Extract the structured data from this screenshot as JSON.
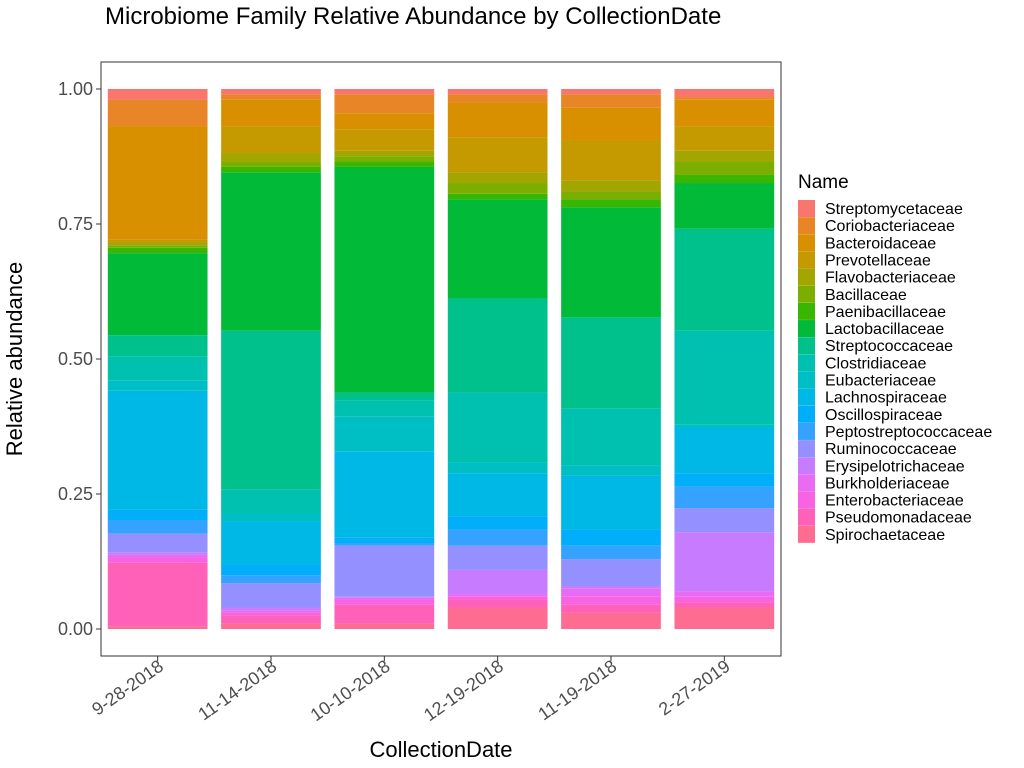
{
  "chart_data": {
    "type": "bar",
    "stacked": true,
    "title": "Microbiome Family Relative Abundance by CollectionDate",
    "xlabel": "CollectionDate",
    "ylabel": "Relative abundance",
    "ylim": [
      0,
      1
    ],
    "yticks": [
      "0.00",
      "0.25",
      "0.50",
      "0.75",
      "1.00"
    ],
    "grid": false,
    "legend": {
      "title": "Name",
      "placement": "right"
    },
    "categories": [
      "9-28-2018",
      "11-14-2018",
      "10-10-2018",
      "12-19-2018",
      "11-19-2018",
      "2-27-2019"
    ],
    "series": [
      {
        "name": "Spirochaetaceae",
        "color": "#FF6C91",
        "values": [
          0.005,
          0.01,
          0.01,
          0.04,
          0.03,
          0.04
        ]
      },
      {
        "name": "Pseudomonadaceae",
        "color": "#FF61B9",
        "values": [
          0.12,
          0.015,
          0.035,
          0.015,
          0.015,
          0.01
        ]
      },
      {
        "name": "Enterobacteriaceae",
        "color": "#F763E0",
        "values": [
          0.01,
          0.005,
          0.01,
          0.005,
          0.015,
          0.01
        ]
      },
      {
        "name": "Burkholderiaceae",
        "color": "#E76BF3",
        "values": [
          0.005,
          0.005,
          0.003,
          0.005,
          0.015,
          0.01
        ]
      },
      {
        "name": "Erysipelotrichaceae",
        "color": "#C77CFF",
        "values": [
          0.005,
          0.005,
          0.002,
          0.045,
          0.005,
          0.11
        ]
      },
      {
        "name": "Ruminococcaceae",
        "color": "#9590FF",
        "values": [
          0.035,
          0.045,
          0.095,
          0.045,
          0.05,
          0.045
        ]
      },
      {
        "name": "Peptostreptococcaceae",
        "color": "#35A2FF",
        "values": [
          0.025,
          0.015,
          0.005,
          0.03,
          0.025,
          0.04
        ]
      },
      {
        "name": "Oscillospiraceae",
        "color": "#00AEFA",
        "values": [
          0.02,
          0.02,
          0.01,
          0.025,
          0.03,
          0.025
        ]
      },
      {
        "name": "Lachnospiraceae",
        "color": "#00B8E5",
        "values": [
          0.225,
          0.08,
          0.16,
          0.08,
          0.1,
          0.085
        ]
      },
      {
        "name": "Eubacteriaceae",
        "color": "#00BFC4",
        "values": [
          0.02,
          0.015,
          0.065,
          0.02,
          0.02,
          0.005
        ]
      },
      {
        "name": "Clostridiaceae",
        "color": "#00C0AF",
        "values": [
          0.045,
          0.045,
          0.03,
          0.13,
          0.105,
          0.175
        ]
      },
      {
        "name": "Streptococcaceae",
        "color": "#00C08B",
        "values": [
          0.04,
          0.295,
          0.015,
          0.175,
          0.17,
          0.19
        ]
      },
      {
        "name": "Lactobacillaceae",
        "color": "#00BA38",
        "values": [
          0.155,
          0.295,
          0.42,
          0.185,
          0.205,
          0.085
        ]
      },
      {
        "name": "Paenibacillaceae",
        "color": "#39B600",
        "values": [
          0.01,
          0.01,
          0.01,
          0.01,
          0.015,
          0.015
        ]
      },
      {
        "name": "Bacillaceae",
        "color": "#7CAE00",
        "values": [
          0.005,
          0.01,
          0.01,
          0.02,
          0.015,
          0.025
        ]
      },
      {
        "name": "Flavobacteriaceae",
        "color": "#A3A500",
        "values": [
          0.005,
          0.015,
          0.01,
          0.02,
          0.02,
          0.02
        ]
      },
      {
        "name": "Prevotellaceae",
        "color": "#C49A00",
        "values": [
          0.005,
          0.05,
          0.04,
          0.065,
          0.075,
          0.045
        ]
      },
      {
        "name": "Bacteroidaceae",
        "color": "#D89000",
        "values": [
          0.215,
          0.05,
          0.03,
          0.065,
          0.06,
          0.05
        ]
      },
      {
        "name": "Coriobacteriaceae",
        "color": "#E88526",
        "values": [
          0.05,
          0.01,
          0.035,
          0.015,
          0.025,
          0.005
        ]
      },
      {
        "name": "Streptomycetaceae",
        "color": "#F8766D",
        "values": [
          0.02,
          0.01,
          0.01,
          0.01,
          0.01,
          0.015
        ]
      }
    ]
  }
}
